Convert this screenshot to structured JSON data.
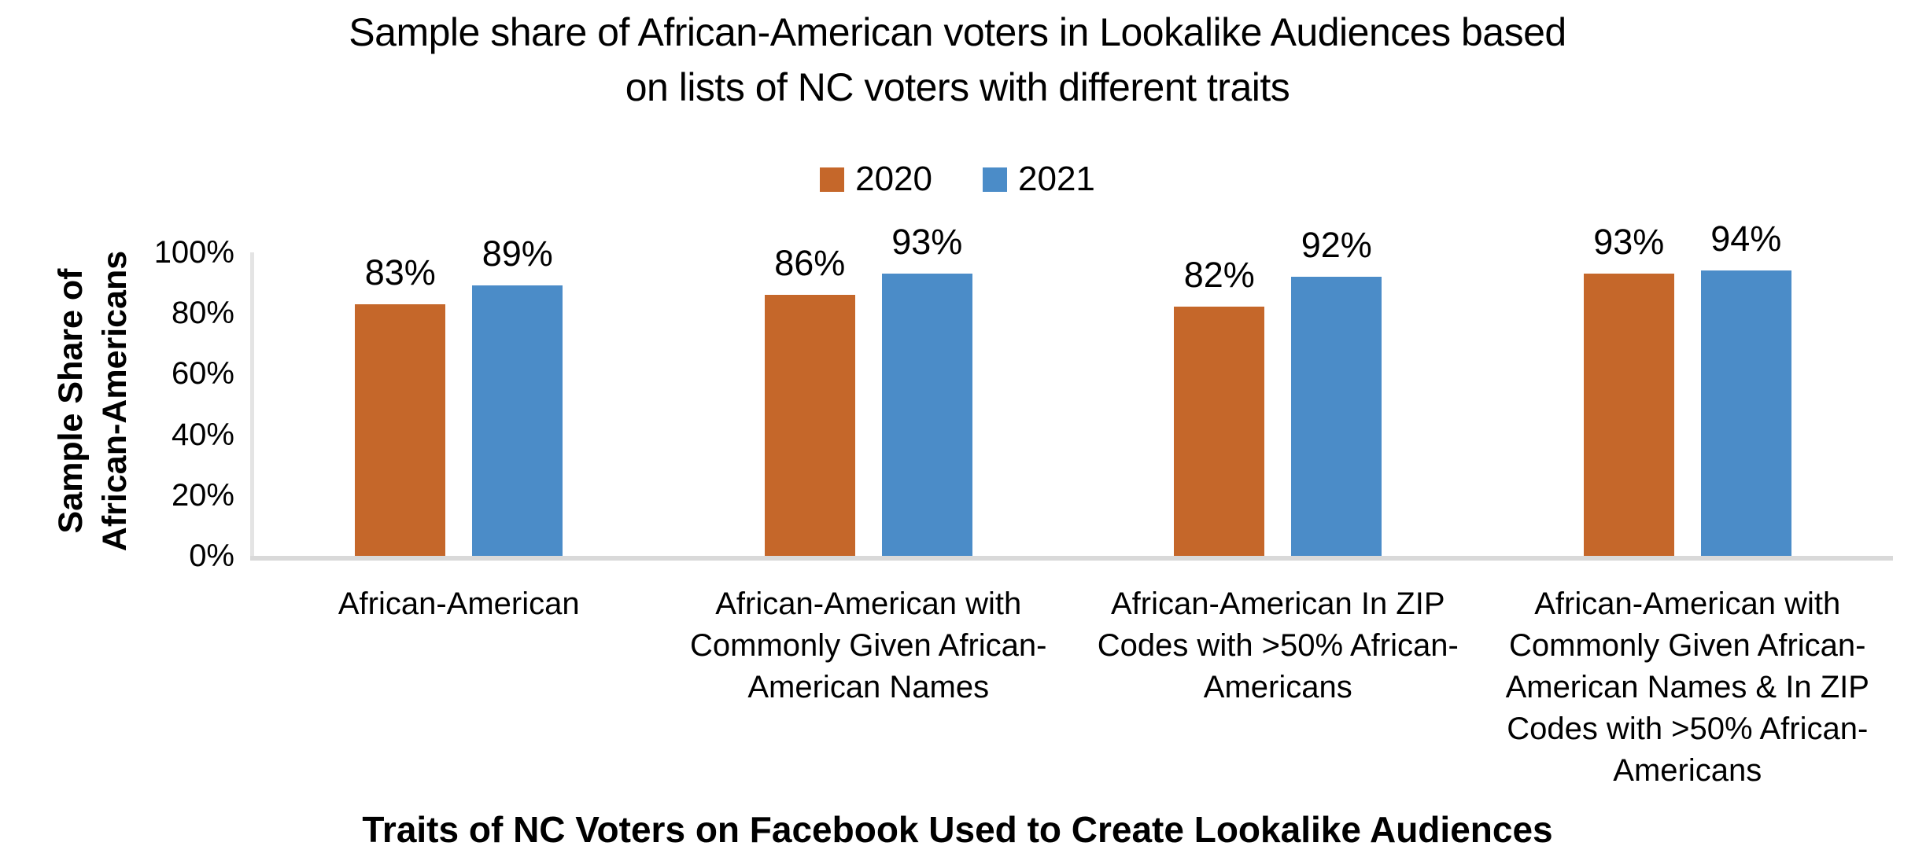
{
  "chart_data": {
    "type": "bar",
    "title": "Sample share of African-American voters in Lookalike Audiences based on lists of NC voters with different traits",
    "title_lines": [
      "Sample share of African-American voters in Lookalike Audiences based",
      "on lists of NC voters with different traits"
    ],
    "xlabel": "Traits of NC Voters on Facebook Used to Create Lookalike Audiences",
    "ylabel": "Sample Share of African-Americans",
    "ylabel_lines": [
      "Sample Share of",
      "African-Americans"
    ],
    "categories": [
      "African-American",
      "African-American with Commonly Given African-American Names",
      "African-American In ZIP Codes with >50% African-Americans",
      "African-American with Commonly Given African-American Names & In ZIP Codes with >50% African-Americans"
    ],
    "series": [
      {
        "name": "2020",
        "color": "#C5672A",
        "values": [
          83,
          86,
          82,
          93
        ]
      },
      {
        "name": "2021",
        "color": "#4B8CC8",
        "values": [
          89,
          93,
          92,
          94
        ]
      }
    ],
    "value_suffix": "%",
    "data_labels": true,
    "ylim": [
      0,
      100
    ],
    "y_ticks": [
      {
        "value": 100,
        "label": "100%"
      },
      {
        "value": 80,
        "label": "80%"
      },
      {
        "value": 60,
        "label": "60%"
      },
      {
        "value": 40,
        "label": "40%"
      },
      {
        "value": 20,
        "label": "20%"
      },
      {
        "value": 0,
        "label": "0%"
      }
    ],
    "grid": false,
    "legend_position": "top"
  }
}
